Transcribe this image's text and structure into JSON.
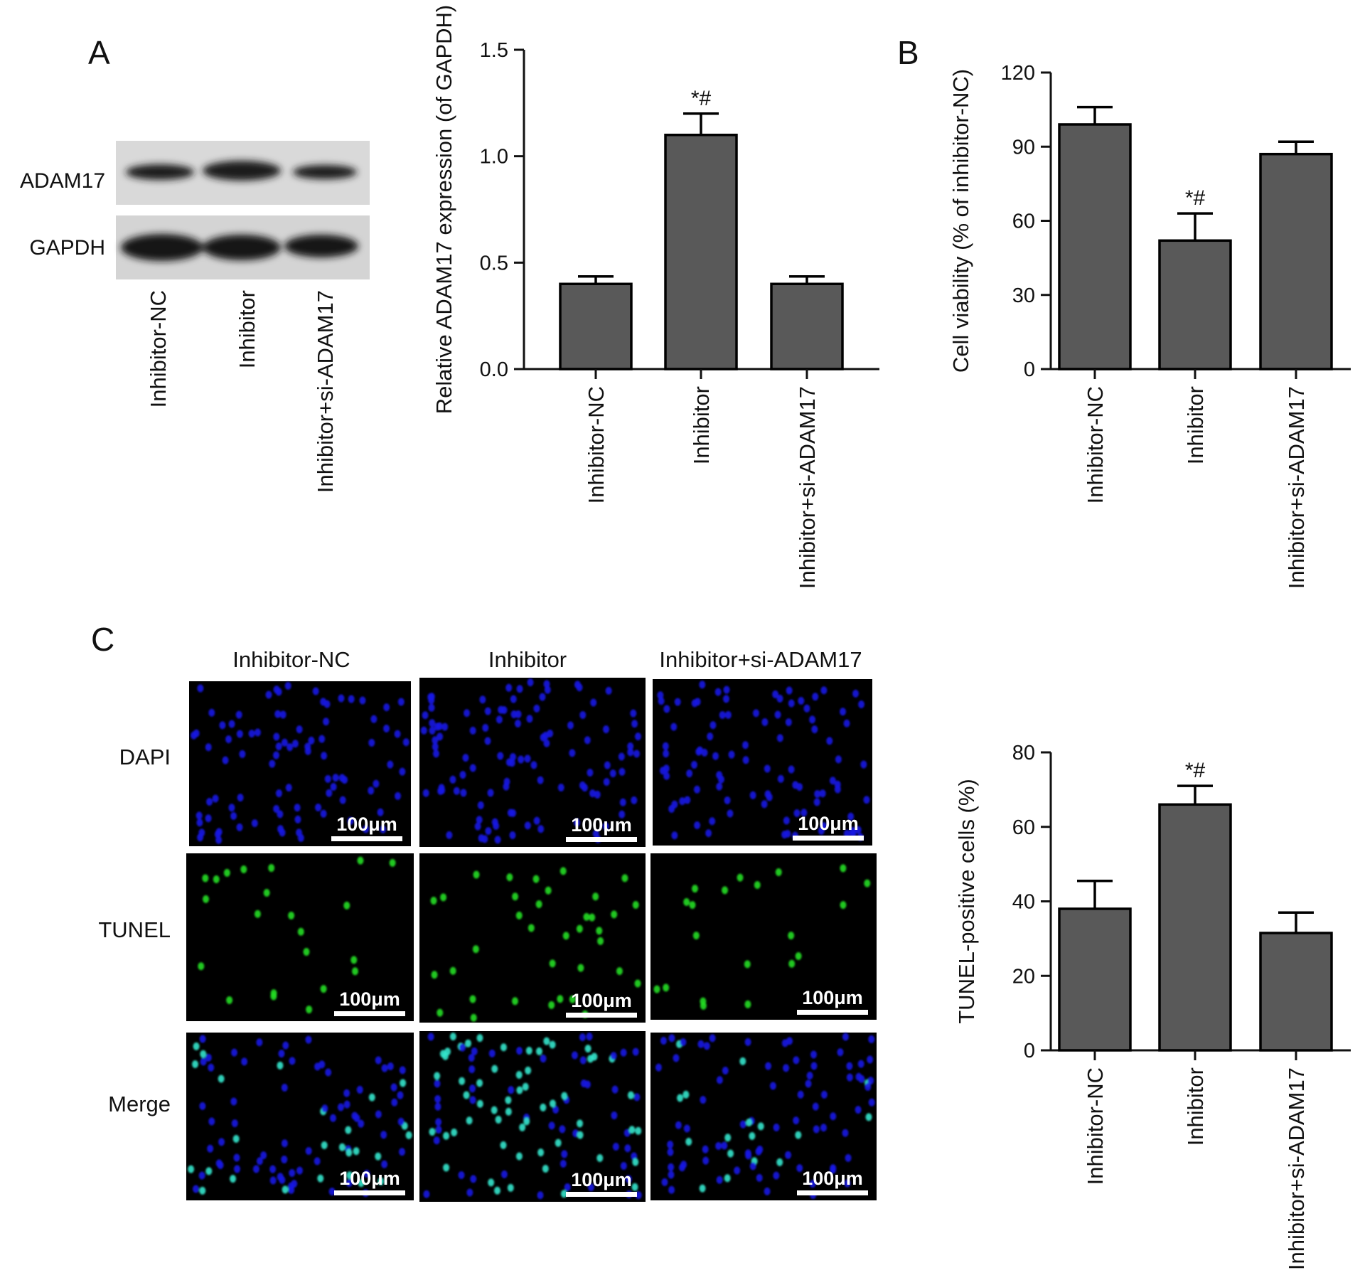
{
  "panels": {
    "a": "A",
    "b": "B",
    "c": "C"
  },
  "groups": [
    "Inhibitor-NC",
    "Inhibitor",
    "Inhibitor+si-ADAM17"
  ],
  "western_blot": {
    "bands": [
      "ADAM17",
      "GAPDH"
    ],
    "lane_labels": [
      "Inhibitor-NC",
      "Inhibitor",
      "Inhibitor+si-ADAM17"
    ]
  },
  "microscopy": {
    "column_titles": [
      "Inhibitor-NC",
      "Inhibitor",
      "Inhibitor+si-ADAM17"
    ],
    "row_labels": [
      "DAPI",
      "TUNEL",
      "Merge"
    ],
    "scale_bar": "100μm",
    "colors": {
      "background": "#000000",
      "dapi": "#1a1ae6",
      "tunel": "#22dd22",
      "merge": "#33e6cc"
    }
  },
  "chart_data": [
    {
      "id": "adam17",
      "type": "bar",
      "categories": [
        "Inhibitor-NC",
        "Inhibitor",
        "Inhibitor+si-ADAM17"
      ],
      "values": [
        0.4,
        1.1,
        0.4
      ],
      "errors": [
        0.035,
        0.1,
        0.035
      ],
      "annotations": [
        "",
        "*#",
        ""
      ],
      "ylabel": "Relative ADAM17 expression (of GAPDH)",
      "ylim": [
        0,
        1.5
      ],
      "yticks": [
        "0.0",
        "0.5",
        "1.0",
        "1.5"
      ],
      "bar_color": "#595959"
    },
    {
      "id": "viability",
      "type": "bar",
      "categories": [
        "Inhibitor-NC",
        "Inhibitor",
        "Inhibitor+si-ADAM17"
      ],
      "values": [
        99,
        52,
        87
      ],
      "errors": [
        7,
        11,
        5
      ],
      "annotations": [
        "",
        "*#",
        ""
      ],
      "ylabel": "Cell viability (% of inhibitor-NC)",
      "ylim": [
        0,
        120
      ],
      "yticks": [
        "0",
        "30",
        "60",
        "90",
        "120"
      ],
      "bar_color": "#595959"
    },
    {
      "id": "tunel",
      "type": "bar",
      "categories": [
        "Inhibitor-NC",
        "Inhibitor",
        "Inhibitor+si-ADAM17"
      ],
      "values": [
        38,
        66,
        31.5
      ],
      "errors": [
        7.5,
        5,
        5.5
      ],
      "annotations": [
        "",
        "*#",
        ""
      ],
      "ylabel": "TUNEL-positive cells (%)",
      "ylim": [
        0,
        80
      ],
      "yticks": [
        "0",
        "20",
        "40",
        "60",
        "80"
      ],
      "bar_color": "#595959"
    }
  ]
}
